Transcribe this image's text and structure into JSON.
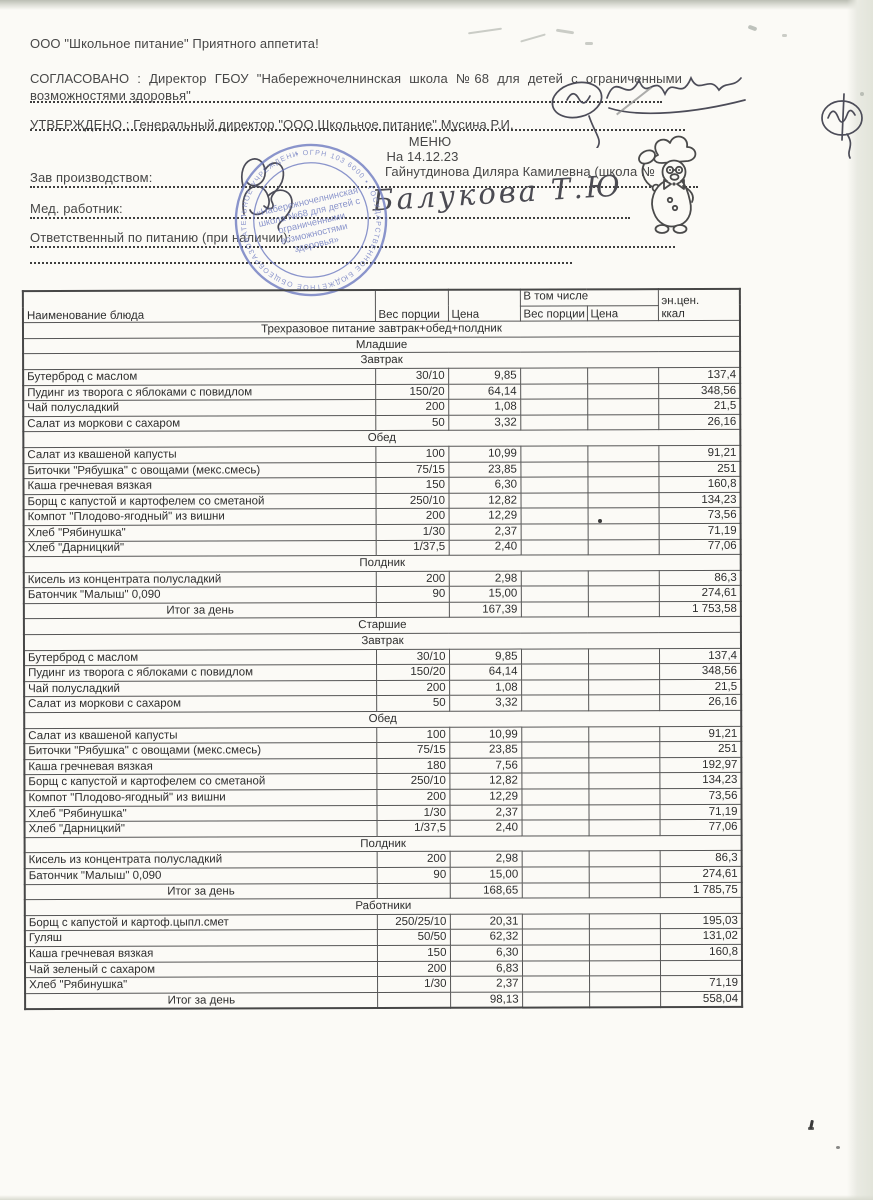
{
  "letterhead": {
    "greeting": "ООО \"Школьное питание\" Приятного аппетита!",
    "agreed": "СОГЛАСОВАНО : Директор ГБОУ \"Набережночелнинская школа №68 для детей с ограниченными возможностями здоровья\"",
    "approved": "УТВЕРЖДЕНО : Генеральный директор \"ООО Школьное питание\" Мусина Р.И.",
    "menu_title": "МЕНЮ",
    "menu_date": "На 14.12.23",
    "production_label": "Зав производством:",
    "production_value": "Гайнутдинова Диляра Камилевна (школа №",
    "med_label": "Мед. работник:",
    "med_signature": "Балукова Т.Ю",
    "responsible_label": "Ответственный по питанию (при наличии):"
  },
  "stamp": {
    "color": "#6e7bc1",
    "ring_text": "• ОГРН 103 6000 • ГОСУДАРСТВЕННОЕ БЮДЖЕТНОЕ ОБЩЕОБРАЗОВАТЕЛЬНОЕ УЧРЕЖДЕНИЕ • ИНН 0500841 •",
    "line1": "«Набережночелнинская",
    "line2": "школа №68 для детей с",
    "line3": "ограниченными",
    "line4": "возможностями",
    "line5": "здоровья»"
  },
  "table": {
    "header": {
      "col_name": "Наименование блюда",
      "col_weight": "Вес порции",
      "col_price": "Цена",
      "col_including": "В том числе",
      "col_inc_weight": "Вес порции",
      "col_inc_price": "Цена",
      "col_energy_line1": "эн.цен.",
      "col_energy_line2": "ккал"
    },
    "rows": [
      {
        "type": "section",
        "label": "Трехразовое питание завтрак+обед+полдник"
      },
      {
        "type": "section",
        "label": "Младшие"
      },
      {
        "type": "section",
        "label": "Завтрак"
      },
      {
        "type": "item",
        "name": "Бутерброд с маслом",
        "weight": "30/10",
        "price": "9,85",
        "inc_weight": "",
        "inc_price": "",
        "kcal": "137,4"
      },
      {
        "type": "item",
        "name": "Пудинг из творога с яблоками с повидлом",
        "weight": "150/20",
        "price": "64,14",
        "inc_weight": "",
        "inc_price": "",
        "kcal": "348,56"
      },
      {
        "type": "item",
        "name": "Чай полусладкий",
        "weight": "200",
        "price": "1,08",
        "inc_weight": "",
        "inc_price": "",
        "kcal": "21,5"
      },
      {
        "type": "item",
        "name": "Салат из моркови с сахаром",
        "weight": "50",
        "price": "3,32",
        "inc_weight": "",
        "inc_price": "",
        "kcal": "26,16"
      },
      {
        "type": "section",
        "label": "Обед"
      },
      {
        "type": "item",
        "name": "Салат из квашеной капусты",
        "weight": "100",
        "price": "10,99",
        "inc_weight": "",
        "inc_price": "",
        "kcal": "91,21"
      },
      {
        "type": "item",
        "name": "Биточки \"Рябушка\" с овощами (мекс.смесь)",
        "weight": "75/15",
        "price": "23,85",
        "inc_weight": "",
        "inc_price": "",
        "kcal": "251"
      },
      {
        "type": "item",
        "name": "Каша гречневая вязкая",
        "weight": "150",
        "price": "6,30",
        "inc_weight": "",
        "inc_price": "",
        "kcal": "160,8"
      },
      {
        "type": "item",
        "name": "Борщ с капустой и картофелем со сметаной",
        "weight": "250/10",
        "price": "12,82",
        "inc_weight": "",
        "inc_price": "",
        "kcal": "134,23"
      },
      {
        "type": "item",
        "name": "Компот \"Плодово-ягодный\" из вишни",
        "weight": "200",
        "price": "12,29",
        "inc_weight": "",
        "inc_price": "",
        "kcal": "73,56"
      },
      {
        "type": "item",
        "name": "Хлеб \"Рябинушка\"",
        "weight": "1/30",
        "price": "2,37",
        "inc_weight": "",
        "inc_price": "",
        "kcal": "71,19"
      },
      {
        "type": "item",
        "name": "Хлеб \"Дарницкий\"",
        "weight": "1/37,5",
        "price": "2,40",
        "inc_weight": "",
        "inc_price": "",
        "kcal": "77,06"
      },
      {
        "type": "section",
        "label": "Полдник"
      },
      {
        "type": "item",
        "name": "Кисель из концентрата полусладкий",
        "weight": "200",
        "price": "2,98",
        "inc_weight": "",
        "inc_price": "",
        "kcal": "86,3"
      },
      {
        "type": "item",
        "name": "Батончик \"Малыш\" 0,090",
        "weight": "90",
        "price": "15,00",
        "inc_weight": "",
        "inc_price": "",
        "kcal": "274,61"
      },
      {
        "type": "total",
        "label": "Итог за день",
        "price": "167,39",
        "kcal": "1 753,58"
      },
      {
        "type": "section",
        "label": "Старшие"
      },
      {
        "type": "section",
        "label": "Завтрак"
      },
      {
        "type": "item",
        "name": "Бутерброд с маслом",
        "weight": "30/10",
        "price": "9,85",
        "inc_weight": "",
        "inc_price": "",
        "kcal": "137,4"
      },
      {
        "type": "item",
        "name": "Пудинг из творога с яблоками с повидлом",
        "weight": "150/20",
        "price": "64,14",
        "inc_weight": "",
        "inc_price": "",
        "kcal": "348,56"
      },
      {
        "type": "item",
        "name": "Чай полусладкий",
        "weight": "200",
        "price": "1,08",
        "inc_weight": "",
        "inc_price": "",
        "kcal": "21,5"
      },
      {
        "type": "item",
        "name": "Салат из моркови с сахаром",
        "weight": "50",
        "price": "3,32",
        "inc_weight": "",
        "inc_price": "",
        "kcal": "26,16"
      },
      {
        "type": "section",
        "label": "Обед"
      },
      {
        "type": "item",
        "name": "Салат из квашеной капусты",
        "weight": "100",
        "price": "10,99",
        "inc_weight": "",
        "inc_price": "",
        "kcal": "91,21"
      },
      {
        "type": "item",
        "name": "Биточки \"Рябушка\" с овощами (мекс.смесь)",
        "weight": "75/15",
        "price": "23,85",
        "inc_weight": "",
        "inc_price": "",
        "kcal": "251"
      },
      {
        "type": "item",
        "name": "Каша гречневая вязкая",
        "weight": "180",
        "price": "7,56",
        "inc_weight": "",
        "inc_price": "",
        "kcal": "192,97"
      },
      {
        "type": "item",
        "name": "Борщ с капустой и картофелем со сметаной",
        "weight": "250/10",
        "price": "12,82",
        "inc_weight": "",
        "inc_price": "",
        "kcal": "134,23"
      },
      {
        "type": "item",
        "name": "Компот \"Плодово-ягодный\" из вишни",
        "weight": "200",
        "price": "12,29",
        "inc_weight": "",
        "inc_price": "",
        "kcal": "73,56"
      },
      {
        "type": "item",
        "name": "Хлеб \"Рябинушка\"",
        "weight": "1/30",
        "price": "2,37",
        "inc_weight": "",
        "inc_price": "",
        "kcal": "71,19"
      },
      {
        "type": "item",
        "name": "Хлеб \"Дарницкий\"",
        "weight": "1/37,5",
        "price": "2,40",
        "inc_weight": "",
        "inc_price": "",
        "kcal": "77,06"
      },
      {
        "type": "section",
        "label": "Полдник"
      },
      {
        "type": "item",
        "name": "Кисель из концентрата полусладкий",
        "weight": "200",
        "price": "2,98",
        "inc_weight": "",
        "inc_price": "",
        "kcal": "86,3"
      },
      {
        "type": "item",
        "name": "Батончик \"Малыш\" 0,090",
        "weight": "90",
        "price": "15,00",
        "inc_weight": "",
        "inc_price": "",
        "kcal": "274,61"
      },
      {
        "type": "total",
        "label": "Итог за день",
        "price": "168,65",
        "kcal": "1 785,75"
      },
      {
        "type": "section",
        "label": "Работники"
      },
      {
        "type": "item",
        "name": "Борщ с капустой и картоф.цыпл.смет",
        "weight": "250/25/10",
        "price": "20,31",
        "inc_weight": "",
        "inc_price": "",
        "kcal": "195,03"
      },
      {
        "type": "item",
        "name": "Гуляш",
        "weight": "50/50",
        "price": "62,32",
        "inc_weight": "",
        "inc_price": "",
        "kcal": "131,02"
      },
      {
        "type": "item",
        "name": "Каша гречневая вязкая",
        "weight": "150",
        "price": "6,30",
        "inc_weight": "",
        "inc_price": "",
        "kcal": "160,8"
      },
      {
        "type": "item",
        "name": "Чай зеленый с сахаром",
        "weight": "200",
        "price": "6,83",
        "inc_weight": "",
        "inc_price": "",
        "kcal": ""
      },
      {
        "type": "item",
        "name": "Хлеб \"Рябинушка\"",
        "weight": "1/30",
        "price": "2,37",
        "inc_weight": "",
        "inc_price": "",
        "kcal": "71,19"
      },
      {
        "type": "total",
        "label": "Итог за день",
        "price": "98,13",
        "kcal": "558,04"
      }
    ]
  }
}
